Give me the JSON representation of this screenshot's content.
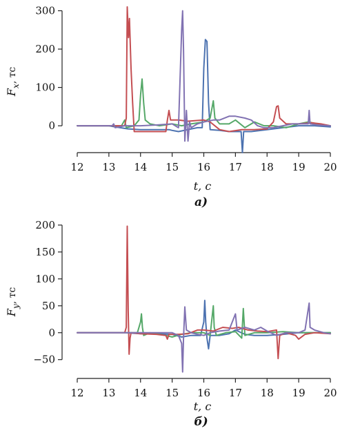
{
  "chart_data": [
    {
      "type": "line",
      "panel_label": "а)",
      "xlabel": "t, с",
      "ylabel_symbol": "F",
      "ylabel_sub": "x",
      "ylabel_unit": ", тс",
      "xlim": [
        12,
        20
      ],
      "ylim": [
        -70,
        310
      ],
      "xticks": [
        12,
        13,
        14,
        15,
        16,
        17,
        18,
        19,
        20
      ],
      "yticks": [
        0,
        100,
        200,
        300
      ],
      "grid": false,
      "series": [
        {
          "color": "#4c72b0",
          "points": [
            [
              12.0,
              0
            ],
            [
              13.0,
              0
            ],
            [
              13.2,
              -3
            ],
            [
              13.6,
              -8
            ],
            [
              14.0,
              -10
            ],
            [
              14.5,
              -10
            ],
            [
              14.9,
              -10
            ],
            [
              15.0,
              -12
            ],
            [
              15.2,
              -15
            ],
            [
              15.5,
              -10
            ],
            [
              15.8,
              -5
            ],
            [
              15.95,
              -5
            ],
            [
              16.0,
              150
            ],
            [
              16.05,
              225
            ],
            [
              16.1,
              220
            ],
            [
              16.15,
              60
            ],
            [
              16.2,
              -10
            ],
            [
              16.5,
              -12
            ],
            [
              16.8,
              -15
            ],
            [
              17.0,
              -15
            ],
            [
              17.18,
              -15
            ],
            [
              17.22,
              -70
            ],
            [
              17.26,
              -15
            ],
            [
              17.5,
              -15
            ],
            [
              18.0,
              -10
            ],
            [
              18.5,
              -5
            ],
            [
              19.0,
              0
            ],
            [
              19.5,
              0
            ],
            [
              20.0,
              -3
            ]
          ]
        },
        {
          "color": "#55a868",
          "points": [
            [
              12.0,
              0
            ],
            [
              13.4,
              0
            ],
            [
              13.5,
              15
            ],
            [
              13.55,
              -5
            ],
            [
              13.8,
              0
            ],
            [
              13.95,
              15
            ],
            [
              14.0,
              80
            ],
            [
              14.05,
              122
            ],
            [
              14.1,
              60
            ],
            [
              14.15,
              15
            ],
            [
              14.3,
              5
            ],
            [
              14.6,
              0
            ],
            [
              15.0,
              5
            ],
            [
              15.3,
              0
            ],
            [
              15.6,
              5
            ],
            [
              16.0,
              10
            ],
            [
              16.2,
              20
            ],
            [
              16.3,
              65
            ],
            [
              16.35,
              20
            ],
            [
              16.5,
              5
            ],
            [
              16.8,
              5
            ],
            [
              17.0,
              15
            ],
            [
              17.3,
              -5
            ],
            [
              17.6,
              10
            ],
            [
              17.9,
              0
            ],
            [
              18.2,
              0
            ],
            [
              18.6,
              -5
            ],
            [
              19.0,
              5
            ],
            [
              19.3,
              10
            ],
            [
              19.6,
              5
            ],
            [
              20.0,
              0
            ]
          ]
        },
        {
          "color": "#c44e52",
          "points": [
            [
              12.0,
              0
            ],
            [
              13.5,
              0
            ],
            [
              13.55,
              20
            ],
            [
              13.58,
              310
            ],
            [
              13.62,
              230
            ],
            [
              13.65,
              280
            ],
            [
              13.7,
              150
            ],
            [
              13.75,
              60
            ],
            [
              13.8,
              -15
            ],
            [
              14.0,
              -15
            ],
            [
              14.4,
              -15
            ],
            [
              14.8,
              -15
            ],
            [
              14.85,
              15
            ],
            [
              14.9,
              40
            ],
            [
              14.95,
              15
            ],
            [
              15.2,
              15
            ],
            [
              15.5,
              12
            ],
            [
              16.0,
              15
            ],
            [
              16.2,
              10
            ],
            [
              16.5,
              -10
            ],
            [
              16.8,
              -15
            ],
            [
              17.2,
              -10
            ],
            [
              17.6,
              -10
            ],
            [
              18.0,
              -8
            ],
            [
              18.2,
              10
            ],
            [
              18.3,
              50
            ],
            [
              18.35,
              52
            ],
            [
              18.4,
              20
            ],
            [
              18.6,
              5
            ],
            [
              19.0,
              5
            ],
            [
              19.4,
              8
            ],
            [
              19.7,
              5
            ],
            [
              20.0,
              0
            ]
          ]
        },
        {
          "color": "#8172b2",
          "points": [
            [
              12.0,
              0
            ],
            [
              13.1,
              0
            ],
            [
              13.15,
              5
            ],
            [
              13.2,
              -5
            ],
            [
              13.5,
              0
            ],
            [
              14.0,
              0
            ],
            [
              14.5,
              2
            ],
            [
              15.0,
              5
            ],
            [
              15.2,
              -5
            ],
            [
              15.3,
              250
            ],
            [
              15.33,
              300
            ],
            [
              15.36,
              200
            ],
            [
              15.4,
              -40
            ],
            [
              15.45,
              40
            ],
            [
              15.5,
              -40
            ],
            [
              15.55,
              10
            ],
            [
              15.6,
              -5
            ],
            [
              15.8,
              5
            ],
            [
              16.0,
              10
            ],
            [
              16.3,
              15
            ],
            [
              16.5,
              15
            ],
            [
              16.8,
              25
            ],
            [
              17.0,
              25
            ],
            [
              17.3,
              20
            ],
            [
              17.5,
              15
            ],
            [
              17.7,
              0
            ],
            [
              17.9,
              -5
            ],
            [
              18.2,
              -5
            ],
            [
              18.5,
              0
            ],
            [
              18.8,
              5
            ],
            [
              19.0,
              5
            ],
            [
              19.3,
              5
            ],
            [
              19.33,
              40
            ],
            [
              19.36,
              5
            ],
            [
              19.6,
              2
            ],
            [
              20.0,
              0
            ]
          ]
        }
      ]
    },
    {
      "type": "line",
      "panel_label": "б)",
      "xlabel": "t, с",
      "ylabel_symbol": "F",
      "ylabel_sub": "y",
      "ylabel_unit": ", тс",
      "xlim": [
        12,
        20
      ],
      "ylim": [
        -85,
        205
      ],
      "xticks": [
        12,
        13,
        14,
        15,
        16,
        17,
        18,
        19,
        20
      ],
      "yticks": [
        -50,
        0,
        50,
        100,
        150,
        200
      ],
      "grid": false,
      "series": [
        {
          "color": "#4c72b0",
          "points": [
            [
              12.0,
              0
            ],
            [
              13.5,
              0
            ],
            [
              14.0,
              -2
            ],
            [
              14.5,
              -2
            ],
            [
              15.0,
              -3
            ],
            [
              15.3,
              -8
            ],
            [
              15.6,
              -5
            ],
            [
              15.9,
              -5
            ],
            [
              16.0,
              20
            ],
            [
              16.03,
              60
            ],
            [
              16.06,
              20
            ],
            [
              16.1,
              -10
            ],
            [
              16.15,
              -30
            ],
            [
              16.2,
              -5
            ],
            [
              16.5,
              -5
            ],
            [
              16.8,
              -2
            ],
            [
              17.0,
              5
            ],
            [
              17.3,
              -3
            ],
            [
              17.6,
              -5
            ],
            [
              18.0,
              -5
            ],
            [
              18.5,
              -3
            ],
            [
              19.0,
              0
            ],
            [
              19.5,
              0
            ],
            [
              20.0,
              0
            ]
          ]
        },
        {
          "color": "#55a868",
          "points": [
            [
              12.0,
              0
            ],
            [
              13.9,
              0
            ],
            [
              14.0,
              20
            ],
            [
              14.03,
              35
            ],
            [
              14.06,
              10
            ],
            [
              14.1,
              -5
            ],
            [
              14.3,
              0
            ],
            [
              14.8,
              -5
            ],
            [
              15.0,
              -8
            ],
            [
              15.3,
              -3
            ],
            [
              15.6,
              0
            ],
            [
              16.0,
              0
            ],
            [
              16.2,
              -5
            ],
            [
              16.3,
              50
            ],
            [
              16.33,
              10
            ],
            [
              16.4,
              -5
            ],
            [
              16.7,
              0
            ],
            [
              17.0,
              2
            ],
            [
              17.2,
              -10
            ],
            [
              17.25,
              45
            ],
            [
              17.3,
              -5
            ],
            [
              17.6,
              0
            ],
            [
              18.0,
              0
            ],
            [
              18.5,
              2
            ],
            [
              19.0,
              0
            ],
            [
              19.5,
              0
            ],
            [
              20.0,
              0
            ]
          ]
        },
        {
          "color": "#c44e52",
          "points": [
            [
              12.0,
              0
            ],
            [
              13.5,
              0
            ],
            [
              13.55,
              10
            ],
            [
              13.58,
              198
            ],
            [
              13.61,
              40
            ],
            [
              13.64,
              -40
            ],
            [
              13.67,
              -10
            ],
            [
              13.7,
              0
            ],
            [
              14.0,
              -2
            ],
            [
              14.5,
              -3
            ],
            [
              14.8,
              -5
            ],
            [
              14.85,
              -12
            ],
            [
              14.9,
              -3
            ],
            [
              15.2,
              -3
            ],
            [
              15.5,
              -2
            ],
            [
              15.8,
              5
            ],
            [
              16.0,
              5
            ],
            [
              16.3,
              3
            ],
            [
              16.6,
              10
            ],
            [
              16.9,
              8
            ],
            [
              17.1,
              10
            ],
            [
              17.4,
              5
            ],
            [
              17.7,
              3
            ],
            [
              18.0,
              2
            ],
            [
              18.3,
              5
            ],
            [
              18.35,
              -48
            ],
            [
              18.4,
              -5
            ],
            [
              18.6,
              0
            ],
            [
              18.9,
              -5
            ],
            [
              19.0,
              -12
            ],
            [
              19.2,
              -3
            ],
            [
              19.5,
              0
            ],
            [
              20.0,
              -2
            ]
          ]
        },
        {
          "color": "#8172b2",
          "points": [
            [
              12.0,
              0
            ],
            [
              14.5,
              0
            ],
            [
              15.0,
              0
            ],
            [
              15.2,
              -5
            ],
            [
              15.3,
              -20
            ],
            [
              15.33,
              -73
            ],
            [
              15.36,
              -10
            ],
            [
              15.4,
              48
            ],
            [
              15.45,
              5
            ],
            [
              15.6,
              0
            ],
            [
              15.8,
              -3
            ],
            [
              16.0,
              -5
            ],
            [
              16.2,
              0
            ],
            [
              16.5,
              3
            ],
            [
              16.8,
              5
            ],
            [
              17.0,
              35
            ],
            [
              17.05,
              5
            ],
            [
              17.3,
              10
            ],
            [
              17.6,
              5
            ],
            [
              17.8,
              10
            ],
            [
              18.0,
              3
            ],
            [
              18.3,
              -5
            ],
            [
              18.6,
              0
            ],
            [
              19.0,
              0
            ],
            [
              19.2,
              5
            ],
            [
              19.33,
              55
            ],
            [
              19.36,
              10
            ],
            [
              19.5,
              5
            ],
            [
              19.8,
              0
            ],
            [
              20.0,
              -2
            ]
          ]
        }
      ]
    }
  ]
}
